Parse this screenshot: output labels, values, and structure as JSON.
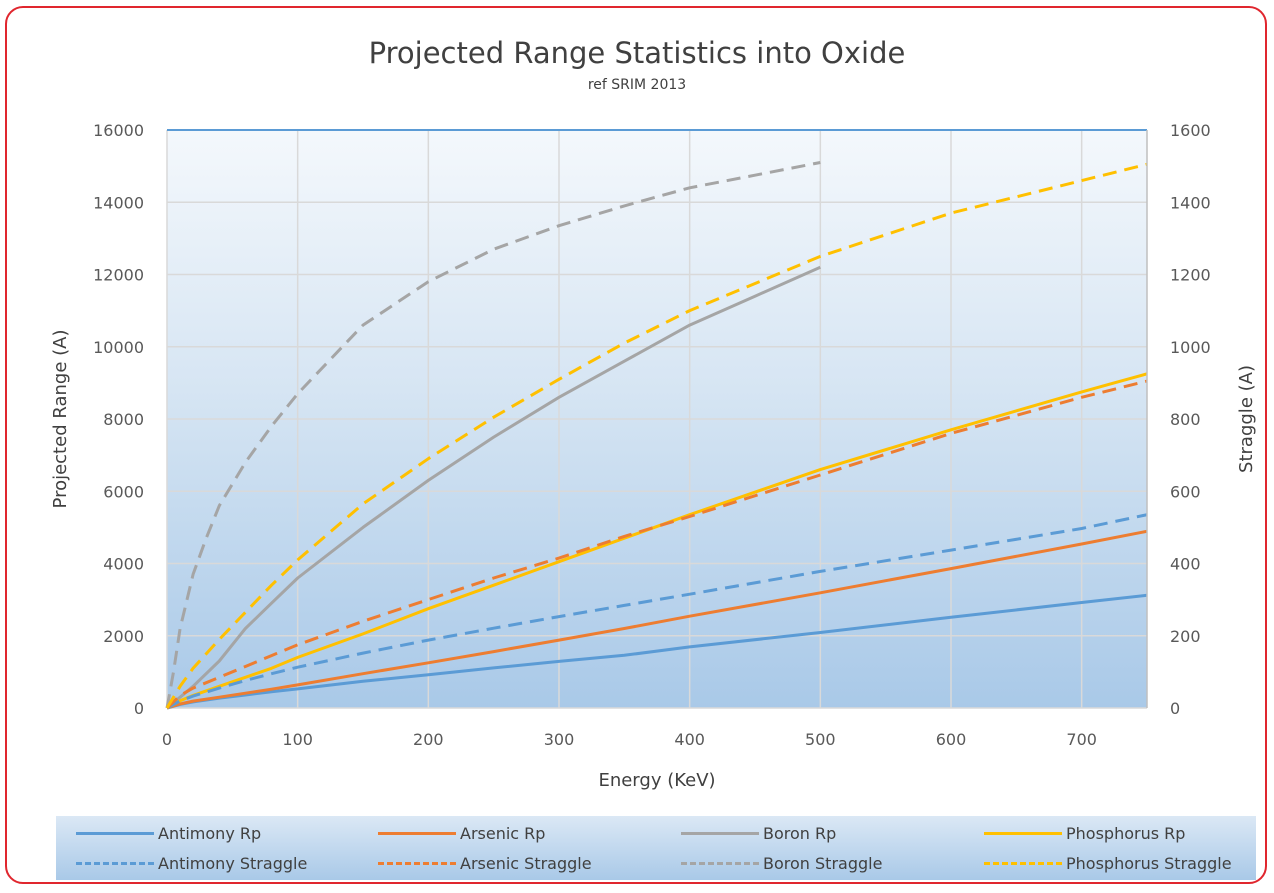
{
  "chart_data": {
    "type": "line",
    "title": "Projected Range Statistics into Oxide",
    "subtitle": "ref SRIM 2013",
    "xlabel": "Energy (KeV)",
    "ylabel": "Projected Range (A)",
    "y2label": "Straggle (A)",
    "xlim": [
      0,
      750
    ],
    "ylim": [
      0,
      16000
    ],
    "y2lim": [
      0,
      1600
    ],
    "xticks": [
      "0",
      "100",
      "200",
      "300",
      "400",
      "500",
      "600",
      "700"
    ],
    "yticks": [
      "0",
      "2000",
      "4000",
      "6000",
      "8000",
      "10000",
      "12000",
      "14000",
      "16000"
    ],
    "y2ticks": [
      "0",
      "200",
      "400",
      "600",
      "800",
      "1000",
      "1200",
      "1400",
      "1600"
    ],
    "grid": true,
    "legend_position": "bottom",
    "series": [
      {
        "name": "Antimony Rp",
        "axis": "left",
        "color": "#5b9bd5",
        "dash": false,
        "x": [
          0,
          10,
          20,
          40,
          60,
          80,
          100,
          150,
          200,
          250,
          300,
          350,
          400,
          500,
          600,
          700,
          750
        ],
        "y": [
          0,
          100,
          170,
          270,
          360,
          450,
          530,
          740,
          920,
          1110,
          1290,
          1460,
          1690,
          2090,
          2510,
          2920,
          3120
        ]
      },
      {
        "name": "Arsenic Rp",
        "axis": "left",
        "color": "#ed7d31",
        "dash": false,
        "x": [
          0,
          10,
          20,
          40,
          60,
          80,
          100,
          150,
          200,
          250,
          300,
          350,
          400,
          500,
          600,
          700,
          750
        ],
        "y": [
          0,
          110,
          190,
          300,
          410,
          520,
          640,
          950,
          1250,
          1560,
          1880,
          2200,
          2540,
          3190,
          3860,
          4540,
          4890
        ]
      },
      {
        "name": "Boron Rp",
        "axis": "left",
        "color": "#a5a5a5",
        "dash": false,
        "x": [
          0,
          10,
          20,
          40,
          60,
          80,
          100,
          150,
          200,
          250,
          300,
          350,
          400,
          450,
          500
        ],
        "y": [
          0,
          300,
          600,
          1300,
          2200,
          2900,
          3600,
          5000,
          6300,
          7500,
          8600,
          9600,
          10600,
          11400,
          12200
        ]
      },
      {
        "name": "Phosphorus Rp",
        "axis": "left",
        "color": "#ffc000",
        "dash": false,
        "x": [
          0,
          10,
          20,
          40,
          60,
          80,
          100,
          150,
          200,
          250,
          300,
          350,
          400,
          500,
          600,
          700,
          750
        ],
        "y": [
          0,
          200,
          350,
          600,
          850,
          1100,
          1400,
          2050,
          2750,
          3400,
          4050,
          4700,
          5350,
          6600,
          7700,
          8750,
          9250
        ]
      },
      {
        "name": "Antimony Straggle",
        "axis": "right",
        "color": "#5b9bd5",
        "dash": true,
        "x": [
          0,
          10,
          20,
          40,
          60,
          80,
          100,
          150,
          200,
          250,
          300,
          350,
          400,
          500,
          600,
          700,
          750
        ],
        "y": [
          0,
          20,
          33,
          55,
          76,
          95,
          113,
          152,
          188,
          221,
          253,
          284,
          315,
          378,
          437,
          497,
          535
        ]
      },
      {
        "name": "Arsenic Straggle",
        "axis": "right",
        "color": "#ed7d31",
        "dash": true,
        "x": [
          0,
          10,
          20,
          40,
          60,
          80,
          100,
          150,
          200,
          250,
          300,
          350,
          400,
          500,
          600,
          700,
          750
        ],
        "y": [
          0,
          35,
          55,
          85,
          115,
          145,
          175,
          240,
          300,
          360,
          415,
          475,
          530,
          645,
          760,
          860,
          905
        ]
      },
      {
        "name": "Boron Straggle",
        "axis": "right",
        "color": "#a5a5a5",
        "dash": true,
        "x": [
          0,
          5,
          10,
          20,
          30,
          40,
          60,
          80,
          100,
          150,
          200,
          250,
          300,
          350,
          400,
          450,
          500
        ],
        "y": [
          0,
          100,
          220,
          370,
          470,
          560,
          680,
          780,
          870,
          1060,
          1180,
          1270,
          1335,
          1390,
          1440,
          1475,
          1510
        ]
      },
      {
        "name": "Phosphorus Straggle",
        "axis": "right",
        "color": "#ffc000",
        "dash": true,
        "x": [
          0,
          10,
          20,
          40,
          60,
          80,
          100,
          150,
          200,
          250,
          300,
          350,
          400,
          500,
          600,
          700,
          750
        ],
        "y": [
          0,
          60,
          110,
          190,
          265,
          340,
          410,
          565,
          690,
          805,
          910,
          1010,
          1100,
          1250,
          1370,
          1460,
          1505
        ]
      }
    ]
  }
}
